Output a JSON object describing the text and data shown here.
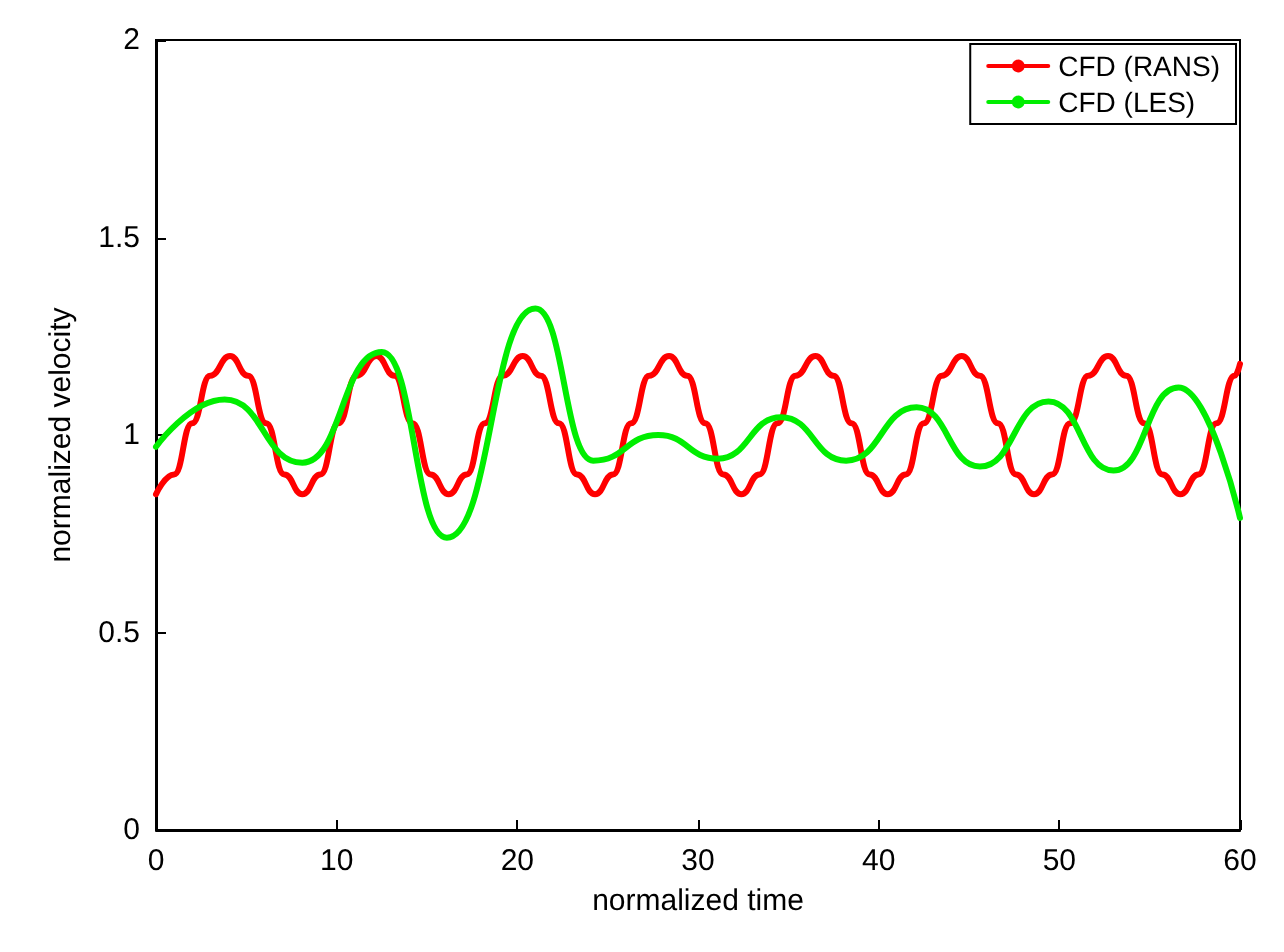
{
  "chart_data": {
    "type": "line",
    "xlabel": "normalized time",
    "ylabel": "normalized velocity",
    "xlim": [
      0,
      60
    ],
    "xticks": [
      0,
      10,
      20,
      30,
      40,
      50,
      60
    ],
    "ylim": [
      0,
      2
    ],
    "yticks": [
      0,
      0.5,
      1,
      1.5,
      2
    ],
    "grid": false,
    "legend": "top right",
    "marker": "none",
    "line_style": "solid",
    "series": [
      {
        "name": "CFD (RANS)",
        "color": "#ff0000",
        "x": [
          0,
          1,
          2,
          3,
          4.1,
          5.1,
          6.1,
          7.1,
          8.1,
          9.1,
          10.1,
          11.1,
          12.2,
          13.2,
          14.2,
          15.2,
          16.2,
          17.2,
          18.2,
          19.2,
          20.3,
          21.3,
          22.3,
          23.3,
          24.3,
          25.3,
          26.3,
          27.3,
          28.4,
          29.4,
          30.4,
          31.4,
          32.4,
          33.4,
          34.4,
          35.4,
          36.5,
          37.5,
          38.5,
          39.5,
          40.5,
          41.5,
          42.5,
          43.5,
          44.6,
          45.6,
          46.6,
          47.6,
          48.6,
          49.6,
          50.6,
          51.6,
          52.7,
          53.7,
          54.7,
          55.7,
          56.7,
          57.7,
          58.7,
          59.7,
          60
        ],
        "values": [
          0.85,
          0.9,
          1.03,
          1.15,
          1.2,
          1.15,
          1.03,
          0.9,
          0.85,
          0.9,
          1.03,
          1.15,
          1.2,
          1.15,
          1.03,
          0.9,
          0.85,
          0.9,
          1.03,
          1.15,
          1.2,
          1.15,
          1.03,
          0.9,
          0.85,
          0.9,
          1.03,
          1.15,
          1.2,
          1.15,
          1.03,
          0.9,
          0.85,
          0.9,
          1.03,
          1.15,
          1.2,
          1.15,
          1.03,
          0.9,
          0.85,
          0.9,
          1.03,
          1.15,
          1.2,
          1.15,
          1.03,
          0.9,
          0.85,
          0.9,
          1.03,
          1.15,
          1.2,
          1.15,
          1.03,
          0.9,
          0.85,
          0.9,
          1.03,
          1.15,
          1.18
        ]
      },
      {
        "name": "CFD (LES)",
        "color": "#00ee00",
        "x": [
          0,
          3.8,
          8.1,
          12.5,
          16.1,
          21,
          24.2,
          27.8,
          31.1,
          34.6,
          38.2,
          42.1,
          45.6,
          49.4,
          53,
          56.6,
          60
        ],
        "values": [
          0.97,
          1.09,
          0.93,
          1.21,
          0.74,
          1.32,
          0.935,
          1,
          0.94,
          1.045,
          0.935,
          1.07,
          0.92,
          1.085,
          0.91,
          1.12,
          0.79
        ]
      }
    ]
  }
}
